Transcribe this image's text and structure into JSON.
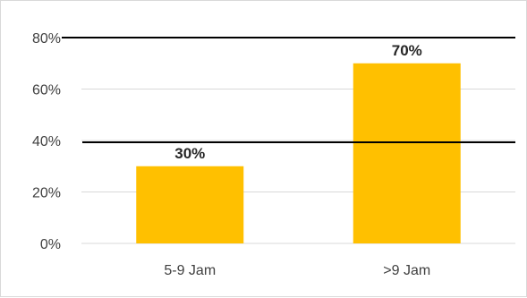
{
  "chart_data": {
    "type": "bar",
    "categories": [
      "5-9 Jam",
      ">9 Jam"
    ],
    "values": [
      30,
      70
    ],
    "data_labels": [
      "30%",
      "70%"
    ],
    "y_ticks": [
      "0%",
      "20%",
      "40%",
      "60%",
      "80%"
    ],
    "ylim": [
      0,
      80
    ],
    "grid": true,
    "legend": "none",
    "bar_color": "#FFC000",
    "title": "",
    "xlabel": "",
    "ylabel": ""
  }
}
